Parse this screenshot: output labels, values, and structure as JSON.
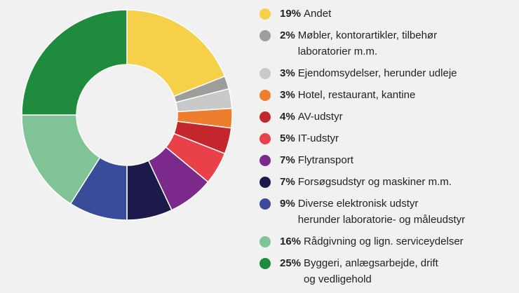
{
  "chart_data": {
    "type": "donut",
    "categories": [
      "Andet",
      "Møbler, kontorartikler, tilbehør\nlaboratorier m.m.",
      "Ejendomsydelser, herunder udleje",
      "Hotel, restaurant, kantine",
      "AV-udstyr",
      "IT-udstyr",
      "Flytransport",
      "Forsøgsudstyr og maskiner m.m.",
      "Diverse elektronisk udstyr\nherunder laboratorie- og måleudstyr",
      "Rådgivning og lign. serviceydelser",
      "Byggeri, anlægsarbejde, drift\nog vedligehold"
    ],
    "values": [
      19,
      2,
      3,
      3,
      4,
      5,
      7,
      7,
      9,
      16,
      25
    ],
    "value_labels": [
      "19%",
      "2%",
      "3%",
      "3%",
      "4%",
      "5%",
      "7%",
      "7%",
      "9%",
      "16%",
      "25%"
    ],
    "colors": [
      "#f7d04a",
      "#9d9d9c",
      "#c9c9c9",
      "#ee7d2e",
      "#c4262e",
      "#ea4049",
      "#7b2a8c",
      "#1b1a4a",
      "#3a4b99",
      "#7fc396",
      "#1e8c3c"
    ]
  }
}
